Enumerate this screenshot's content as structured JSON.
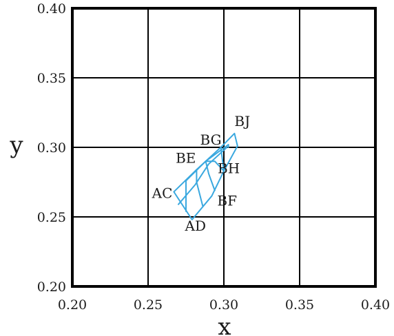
{
  "chart_data": {
    "type": "line",
    "title": "",
    "xlabel": "x",
    "ylabel": "y",
    "xlim": [
      0.2,
      0.4
    ],
    "ylim": [
      0.2,
      0.4
    ],
    "xticks": [
      "0.20",
      "0.25",
      "0.30",
      "0.35",
      "0.40"
    ],
    "yticks": [
      "0.20",
      "0.25",
      "0.30",
      "0.35",
      "0.40"
    ],
    "grid": true,
    "mesh_color": "#3aa8df",
    "points": [
      {
        "label": "AC",
        "x": 0.267,
        "y": 0.268
      },
      {
        "label": "AD",
        "x": 0.279,
        "y": 0.248
      },
      {
        "label": "BE",
        "x": 0.282,
        "y": 0.284
      },
      {
        "label": "BF",
        "x": 0.292,
        "y": 0.265
      },
      {
        "label": "BG",
        "x": 0.298,
        "y": 0.3
      },
      {
        "label": "BH",
        "x": 0.3,
        "y": 0.283
      },
      {
        "label": "BJ",
        "x": 0.307,
        "y": 0.31
      }
    ],
    "series": [
      {
        "values": [
          [
            0.267,
            0.268
          ],
          [
            0.282,
            0.284
          ],
          [
            0.298,
            0.3
          ],
          [
            0.307,
            0.31
          ],
          [
            0.309,
            0.301
          ],
          [
            0.3,
            0.283
          ],
          [
            0.292,
            0.265
          ],
          [
            0.279,
            0.248
          ],
          [
            0.267,
            0.268
          ]
        ]
      },
      {
        "values": [
          [
            0.275,
            0.276
          ],
          [
            0.288,
            0.29
          ],
          [
            0.303,
            0.302
          ],
          [
            0.303,
            0.3
          ]
        ]
      },
      {
        "values": [
          [
            0.27,
            0.259
          ],
          [
            0.281,
            0.273
          ],
          [
            0.29,
            0.288
          ],
          [
            0.302,
            0.3
          ]
        ]
      },
      {
        "values": [
          [
            0.275,
            0.276
          ],
          [
            0.275,
            0.254
          ]
        ]
      },
      {
        "values": [
          [
            0.282,
            0.284
          ],
          [
            0.282,
            0.275
          ],
          [
            0.286,
            0.258
          ]
        ]
      },
      {
        "values": [
          [
            0.288,
            0.29
          ],
          [
            0.29,
            0.281
          ],
          [
            0.294,
            0.269
          ]
        ]
      },
      {
        "values": [
          [
            0.298,
            0.3
          ],
          [
            0.3,
            0.283
          ]
        ]
      },
      {
        "values": [
          [
            0.3,
            0.283
          ],
          [
            0.294,
            0.29
          ],
          [
            0.288,
            0.29
          ]
        ]
      }
    ]
  }
}
